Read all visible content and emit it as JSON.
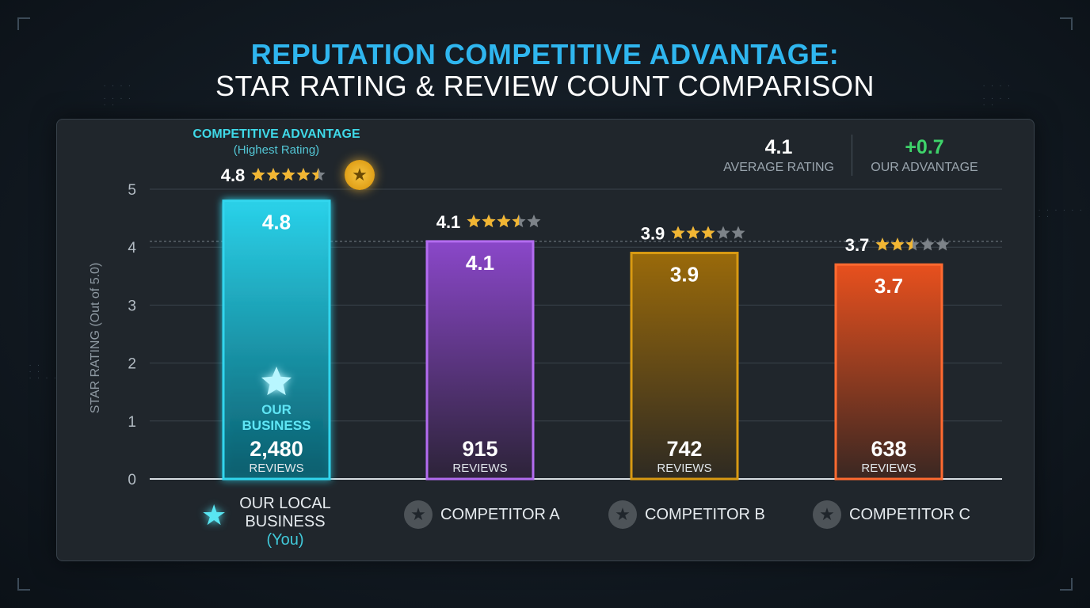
{
  "title_line1": "REPUTATION COMPETITIVE ADVANTAGE:",
  "title_line2": "STAR RATING & REVIEW COUNT COMPARISON",
  "stats": {
    "average_value": "4.1",
    "average_label": "AVERAGE RATING",
    "advantage_value": "+0.7",
    "advantage_label": "OUR ADVANTAGE"
  },
  "callout": {
    "title": "COMPETITIVE ADVANTAGE",
    "subtitle": "(Highest Rating)"
  },
  "highlight_bar_labels": {
    "line1": "OUR",
    "line2": "BUSINESS"
  },
  "reviews_label": "REVIEWS",
  "categories": [
    {
      "label": "OUR LOCAL BUSINESS",
      "line1": "OUR LOCAL",
      "line2": "BUSINESS",
      "sub": "(You)",
      "icon": "glowing-star-icon"
    },
    {
      "label": "COMPETITOR A",
      "icon": "star-circle-icon"
    },
    {
      "label": "COMPETITOR B",
      "icon": "star-circle-icon"
    },
    {
      "label": "COMPETITOR C",
      "icon": "star-circle-icon"
    }
  ],
  "colors": {
    "ours": "#33d6ee",
    "competitor_a": "#9a4fd6",
    "competitor_b": "#c8860f",
    "competitor_c": "#f05a26",
    "star": "#f2b633",
    "advantage_green": "#3ed36a",
    "title_accent": "#2fb6ef"
  },
  "chart_data": {
    "type": "bar",
    "ylabel": "STAR RATING (Out of 5.0)",
    "ylim": [
      0,
      5
    ],
    "yticks": [
      "0",
      "1",
      "2",
      "3",
      "4",
      "5"
    ],
    "reference_line": 4.1,
    "categories": [
      "OUR LOCAL BUSINESS (You)",
      "COMPETITOR A",
      "COMPETITOR B",
      "COMPETITOR C"
    ],
    "values": [
      4.8,
      4.1,
      3.9,
      3.7
    ],
    "value_labels": [
      "4.8",
      "4.1",
      "3.9",
      "3.7"
    ],
    "review_counts": [
      "2,480",
      "915",
      "742",
      "638"
    ],
    "stars_displayed": [
      4.5,
      3.5,
      3,
      2.5
    ]
  }
}
